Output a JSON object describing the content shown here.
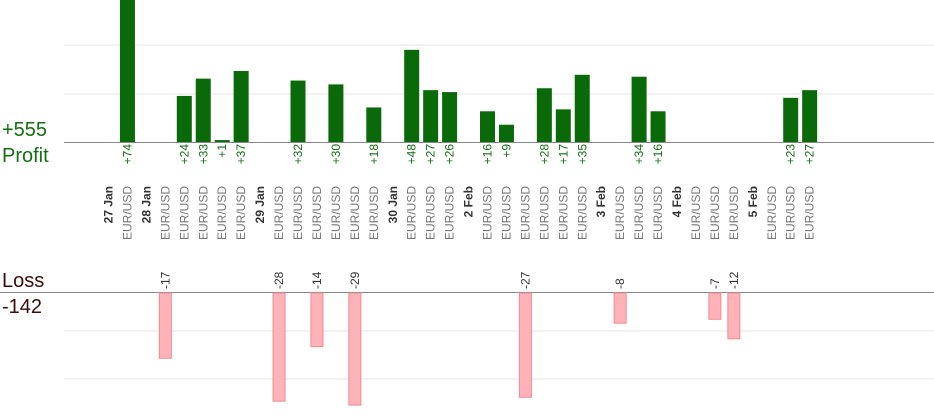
{
  "chart_data": {
    "type": "bar",
    "title": "",
    "xlabel": "",
    "ylabel": "",
    "profit": {
      "total_label": "+555",
      "label": "Profit",
      "ylim": [
        0,
        100
      ]
    },
    "loss": {
      "total_label": "-142",
      "label": "Loss",
      "ylim": [
        -30,
        0
      ]
    },
    "colors": {
      "profit_bar": "#0a6a0a",
      "profit_text": "#127012",
      "loss_bar": "#ffb3b8",
      "loss_bar_edge": "#f08a93",
      "date_text": "#333333",
      "pair_text": "#777777",
      "axis": "#888888",
      "grid": "#e6e6e6"
    },
    "slots": [
      {
        "kind": "date",
        "label": "27 Jan"
      },
      {
        "kind": "trade",
        "pair": "EUR/USD",
        "value": 74,
        "label": "+74"
      },
      {
        "kind": "date",
        "label": "28 Jan"
      },
      {
        "kind": "trade",
        "pair": "EUR/USD",
        "value": -17,
        "label": "-17"
      },
      {
        "kind": "trade",
        "pair": "EUR/USD",
        "value": 24,
        "label": "+24"
      },
      {
        "kind": "trade",
        "pair": "EUR/USD",
        "value": 33,
        "label": "+33"
      },
      {
        "kind": "trade",
        "pair": "EUR/USD",
        "value": 1,
        "label": "+1"
      },
      {
        "kind": "trade",
        "pair": "EUR/USD",
        "value": 37,
        "label": "+37"
      },
      {
        "kind": "date",
        "label": "29 Jan"
      },
      {
        "kind": "trade",
        "pair": "EUR/USD",
        "value": -28,
        "label": "-28"
      },
      {
        "kind": "trade",
        "pair": "EUR/USD",
        "value": 32,
        "label": "+32"
      },
      {
        "kind": "trade",
        "pair": "EUR/USD",
        "value": -14,
        "label": "-14"
      },
      {
        "kind": "trade",
        "pair": "EUR/USD",
        "value": 30,
        "label": "+30"
      },
      {
        "kind": "trade",
        "pair": "EUR/USD",
        "value": -29,
        "label": "-29"
      },
      {
        "kind": "trade",
        "pair": "EUR/USD",
        "value": 18,
        "label": "+18"
      },
      {
        "kind": "date",
        "label": "30 Jan"
      },
      {
        "kind": "trade",
        "pair": "EUR/USD",
        "value": 48,
        "label": "+48"
      },
      {
        "kind": "trade",
        "pair": "EUR/USD",
        "value": 27,
        "label": "+27"
      },
      {
        "kind": "trade",
        "pair": "EUR/USD",
        "value": 26,
        "label": "+26"
      },
      {
        "kind": "date",
        "label": "2 Feb"
      },
      {
        "kind": "trade",
        "pair": "EUR/USD",
        "value": 16,
        "label": "+16"
      },
      {
        "kind": "trade",
        "pair": "EUR/USD",
        "value": 9,
        "label": "+9"
      },
      {
        "kind": "trade",
        "pair": "EUR/USD",
        "value": -27,
        "label": "-27"
      },
      {
        "kind": "trade",
        "pair": "EUR/USD",
        "value": 28,
        "label": "+28"
      },
      {
        "kind": "trade",
        "pair": "EUR/USD",
        "value": 17,
        "label": "+17"
      },
      {
        "kind": "trade",
        "pair": "EUR/USD",
        "value": 35,
        "label": "+35"
      },
      {
        "kind": "date",
        "label": "3 Feb"
      },
      {
        "kind": "trade",
        "pair": "EUR/USD",
        "value": -8,
        "label": "-8"
      },
      {
        "kind": "trade",
        "pair": "EUR/USD",
        "value": 34,
        "label": "+34"
      },
      {
        "kind": "trade",
        "pair": "EUR/USD",
        "value": 16,
        "label": "+16"
      },
      {
        "kind": "date",
        "label": "4 Feb"
      },
      {
        "kind": "trade",
        "pair": "EUR/USD",
        "value": null,
        "label": ""
      },
      {
        "kind": "trade",
        "pair": "EUR/USD",
        "value": -7,
        "label": "-7"
      },
      {
        "kind": "trade",
        "pair": "EUR/USD",
        "value": -12,
        "label": "-12"
      },
      {
        "kind": "date",
        "label": "5 Feb"
      },
      {
        "kind": "trade",
        "pair": "EUR/USD",
        "value": null,
        "label": ""
      },
      {
        "kind": "trade",
        "pair": "EUR/USD",
        "value": 23,
        "label": "+23"
      },
      {
        "kind": "trade",
        "pair": "EUR/USD",
        "value": 27,
        "label": "+27"
      }
    ]
  }
}
